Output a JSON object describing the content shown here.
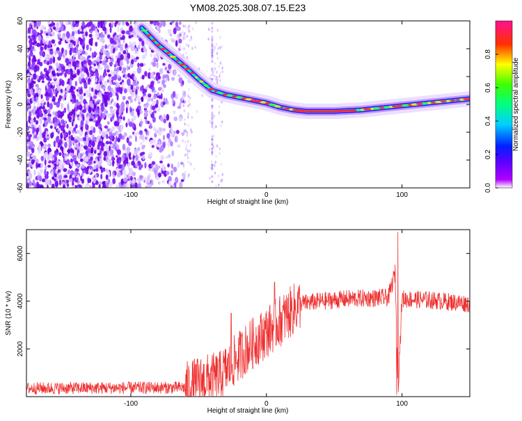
{
  "title": "YM08.2025.308.07.15.E23",
  "colors": {
    "spectral_cmap": [
      "#ffffff",
      "#8b00ff",
      "#3b00ff",
      "#0040ff",
      "#00ffff",
      "#00ff40",
      "#ffff00",
      "#ff2020",
      "#ff2080"
    ],
    "snr_line": "#ef2f2f",
    "axis": "#000000"
  },
  "chart_data": [
    {
      "type": "heatmap",
      "xlabel": "Height of straight line (km)",
      "ylabel": "Frequency (Hz)",
      "xlim": [
        -177,
        150
      ],
      "ylim": [
        -60,
        60
      ],
      "xticks": [
        -100,
        0,
        100
      ],
      "xtick_labels": [
        "-100",
        "0",
        "100"
      ],
      "yticks": [
        -60,
        -40,
        -20,
        0,
        20,
        40,
        60
      ],
      "ytick_labels": [
        "-60",
        "-40",
        "-20",
        "0",
        "20",
        "40",
        "60"
      ],
      "colorbar": {
        "label": "Normalized spectral amplitude",
        "range": [
          0,
          1
        ],
        "ticks": [
          0.0,
          0.2,
          0.4,
          0.6,
          0.8
        ],
        "tick_labels": [
          "0.0",
          "0.2",
          "0.4",
          "0.6",
          "0.8"
        ]
      },
      "ridge": {
        "x": [
          -92,
          -80,
          -70,
          -60,
          -50,
          -40,
          -30,
          -20,
          -10,
          0,
          10,
          20,
          30,
          40,
          50,
          60,
          70,
          80,
          90,
          100,
          110,
          120,
          130,
          140,
          150
        ],
        "y": [
          55,
          43,
          35,
          27,
          18,
          10,
          7,
          5,
          3,
          1,
          -2,
          -4,
          -5,
          -5,
          -5,
          -4.5,
          -4,
          -3,
          -2,
          -1,
          0,
          1,
          2,
          3,
          4
        ]
      }
    },
    {
      "type": "line",
      "xlabel": "Height of straight line (km)",
      "ylabel": "SNR (10 * v/v)",
      "xlim": [
        -177,
        150
      ],
      "ylim": [
        0,
        7000
      ],
      "xticks": [
        -100,
        0,
        100
      ],
      "xtick_labels": [
        "-100",
        "0",
        "100"
      ],
      "yticks": [
        2000,
        4000,
        6000
      ],
      "ytick_labels": [
        "2000",
        "4000",
        "6000"
      ],
      "envelope": {
        "x": [
          -177,
          -60,
          -45,
          -35,
          -25,
          -15,
          0,
          15,
          25,
          40,
          60,
          90,
          95,
          97,
          100,
          120,
          150
        ],
        "y": [
          350,
          380,
          700,
          800,
          1400,
          2000,
          2700,
          3400,
          3900,
          4000,
          4100,
          4150,
          5200,
          200,
          4100,
          4050,
          3900
        ]
      },
      "spikes": [
        {
          "x": -26,
          "y": 3500
        },
        {
          "x": 6,
          "y": 4800
        },
        {
          "x": 97,
          "y": 6900
        },
        {
          "x": 96,
          "y": 80
        }
      ]
    }
  ]
}
